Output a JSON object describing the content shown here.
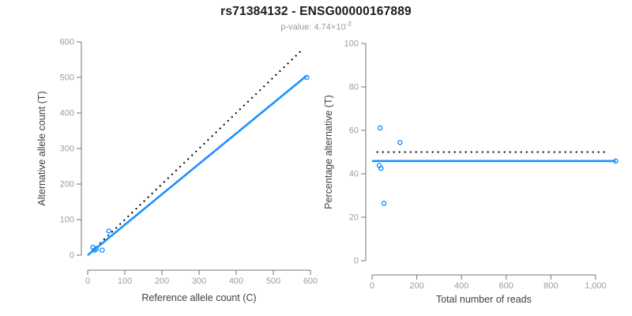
{
  "title": "rs71384132 - ENSG00000167889",
  "subtitle": {
    "text": "p-value: 4.74×10",
    "sup": "-3"
  },
  "colors": {
    "series_blue": "#1E90FF",
    "reference_black": "#000000",
    "axis_line": "#737373",
    "tick_label": "#9C9C9C",
    "axis_title": "#404040",
    "title": "#1A1A1A",
    "subtitle": "#999999",
    "background": "#FFFFFF"
  },
  "chart_data": [
    {
      "id": "left",
      "type": "scatter",
      "title": "",
      "xlabel": "Reference allele count (C)",
      "ylabel": "Alternative allele count (T)",
      "xlim": [
        0,
        600
      ],
      "ylim": [
        0,
        600
      ],
      "grid": false,
      "legend": "none",
      "marker": {
        "shape": "open-circle",
        "color": "#1E90FF"
      },
      "xtick_values": [
        0,
        100,
        200,
        300,
        400,
        500,
        600
      ],
      "xtick_labels": [
        "0",
        "100",
        "200",
        "300",
        "400",
        "500",
        "600"
      ],
      "ytick_values": [
        0,
        100,
        200,
        300,
        400,
        500,
        600
      ],
      "ytick_labels": [
        "0",
        "100",
        "200",
        "300",
        "400",
        "500",
        "600"
      ],
      "points": [
        [
          14,
          22
        ],
        [
          57,
          68
        ],
        [
          18,
          14
        ],
        [
          23,
          17
        ],
        [
          39,
          14
        ],
        [
          590,
          500
        ]
      ],
      "lines": [
        {
          "name": "identity-line",
          "style": "dotted",
          "color": "#000000",
          "x1": 0,
          "y1": 0,
          "x2": 578,
          "y2": 578
        },
        {
          "name": "regression-line",
          "style": "solid",
          "color": "#1E90FF",
          "x1": 0,
          "y1": 0,
          "x2": 590,
          "y2": 505
        }
      ]
    },
    {
      "id": "right",
      "type": "scatter",
      "title": "",
      "xlabel": "Total number of reads",
      "ylabel": "Percentage alternative (T)",
      "xlim": [
        0,
        1110
      ],
      "ylim": [
        0,
        100
      ],
      "grid": false,
      "legend": "none",
      "marker": {
        "shape": "open-circle",
        "color": "#1E90FF"
      },
      "xtick_values": [
        0,
        200,
        400,
        600,
        800,
        1000
      ],
      "xtick_labels": [
        "0",
        "200",
        "400",
        "600",
        "800",
        "1,000"
      ],
      "ytick_values": [
        0,
        20,
        40,
        60,
        80,
        100
      ],
      "ytick_labels": [
        "0",
        "20",
        "40",
        "60",
        "80",
        "100"
      ],
      "points": [
        [
          36,
          61.1
        ],
        [
          125,
          54.4
        ],
        [
          32,
          43.8
        ],
        [
          40,
          42.5
        ],
        [
          53,
          26.4
        ],
        [
          1090,
          45.9
        ]
      ],
      "lines": [
        {
          "name": "null-50-percent-line",
          "style": "dotted",
          "color": "#000000",
          "x1": 20,
          "y1": 50,
          "x2": 1050,
          "y2": 50
        },
        {
          "name": "mean-percentage-line",
          "style": "solid",
          "color": "#1E90FF",
          "x1": 0,
          "y1": 45.9,
          "x2": 1090,
          "y2": 45.9
        }
      ]
    }
  ]
}
